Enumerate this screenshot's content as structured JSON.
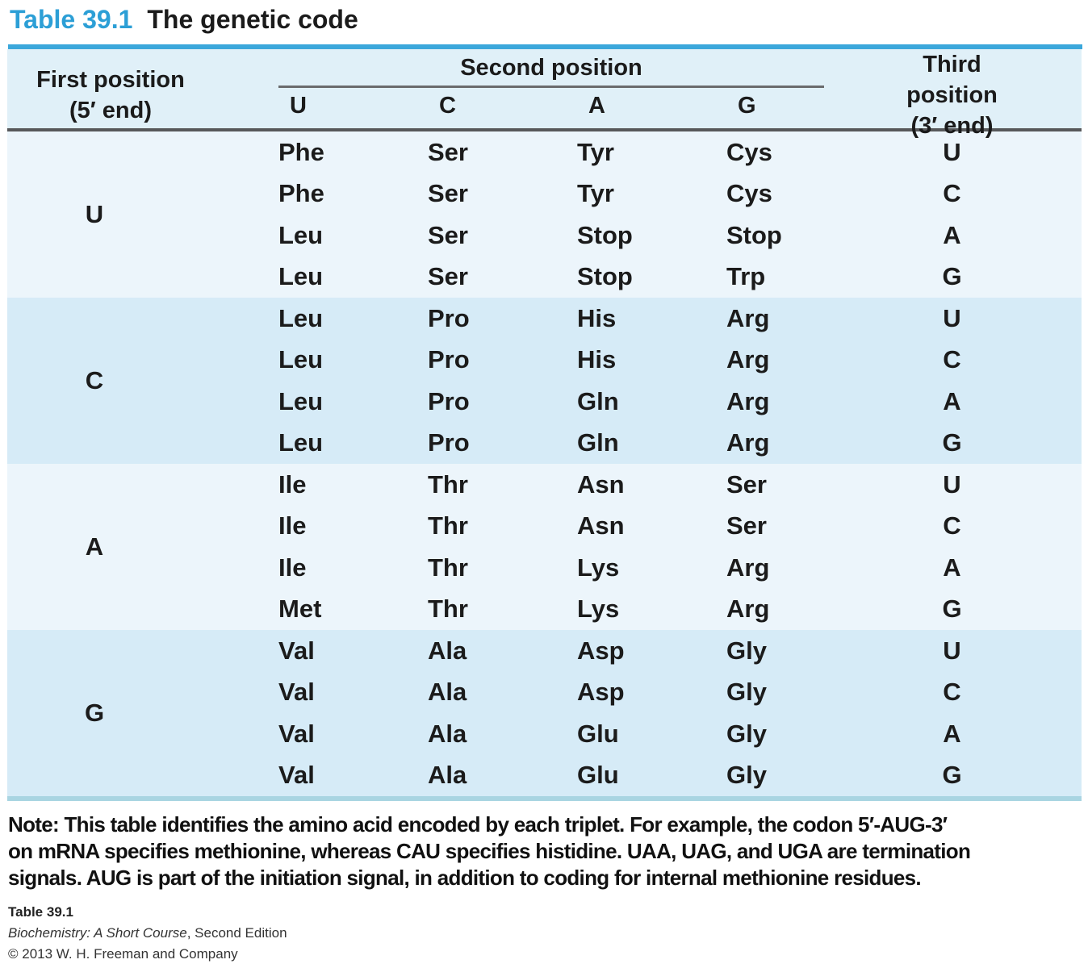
{
  "title": {
    "label": "Table 39.1",
    "text": "The genetic code"
  },
  "table": {
    "first_position_header": {
      "line1": "First position",
      "line2": "(5′ end)"
    },
    "second_position_header": "Second position",
    "second_subcolumns": [
      "U",
      "C",
      "A",
      "G"
    ],
    "third_position_header": {
      "line1": "Third position",
      "line2": "(3′ end)"
    },
    "groups": [
      {
        "first": "U",
        "rows": [
          [
            "Phe",
            "Ser",
            "Tyr",
            "Cys",
            "U"
          ],
          [
            "Phe",
            "Ser",
            "Tyr",
            "Cys",
            "C"
          ],
          [
            "Leu",
            "Ser",
            "Stop",
            "Stop",
            "A"
          ],
          [
            "Leu",
            "Ser",
            "Stop",
            "Trp",
            "G"
          ]
        ]
      },
      {
        "first": "C",
        "rows": [
          [
            "Leu",
            "Pro",
            "His",
            "Arg",
            "U"
          ],
          [
            "Leu",
            "Pro",
            "His",
            "Arg",
            "C"
          ],
          [
            "Leu",
            "Pro",
            "Gln",
            "Arg",
            "A"
          ],
          [
            "Leu",
            "Pro",
            "Gln",
            "Arg",
            "G"
          ]
        ]
      },
      {
        "first": "A",
        "rows": [
          [
            "Ile",
            "Thr",
            "Asn",
            "Ser",
            "U"
          ],
          [
            "Ile",
            "Thr",
            "Asn",
            "Ser",
            "C"
          ],
          [
            "Ile",
            "Thr",
            "Lys",
            "Arg",
            "A"
          ],
          [
            "Met",
            "Thr",
            "Lys",
            "Arg",
            "G"
          ]
        ]
      },
      {
        "first": "G",
        "rows": [
          [
            "Val",
            "Ala",
            "Asp",
            "Gly",
            "U"
          ],
          [
            "Val",
            "Ala",
            "Asp",
            "Gly",
            "C"
          ],
          [
            "Val",
            "Ala",
            "Glu",
            "Gly",
            "A"
          ],
          [
            "Val",
            "Ala",
            "Glu",
            "Gly",
            "G"
          ]
        ]
      }
    ]
  },
  "note_lines": [
    "Note: This table identifies the amino acid encoded by each triplet. For example, the codon 5′-AUG-3′",
    "on mRNA specifies methionine, whereas CAU specifies histidine. UAA, UAG, and UGA are termination",
    "signals. AUG is part of the initiation signal, in addition to coding for internal methionine residues."
  ],
  "credits": {
    "caption": "Table 39.1",
    "book_italic": "Biochemistry: A Short Course",
    "book_rest": ", Second Edition",
    "copyright": "© 2013 W. H. Freeman and Company"
  },
  "colors": {
    "accent": "#2c9fd6",
    "accent_rule": "#3ba7db",
    "header_band": "#e0f0f8",
    "band_light": "#ecf5fb",
    "band_dark": "#d6ebf7",
    "dark_rule": "#57585a",
    "bottom_rule": "#a9d5e2",
    "page_bg": "#ffffff"
  }
}
